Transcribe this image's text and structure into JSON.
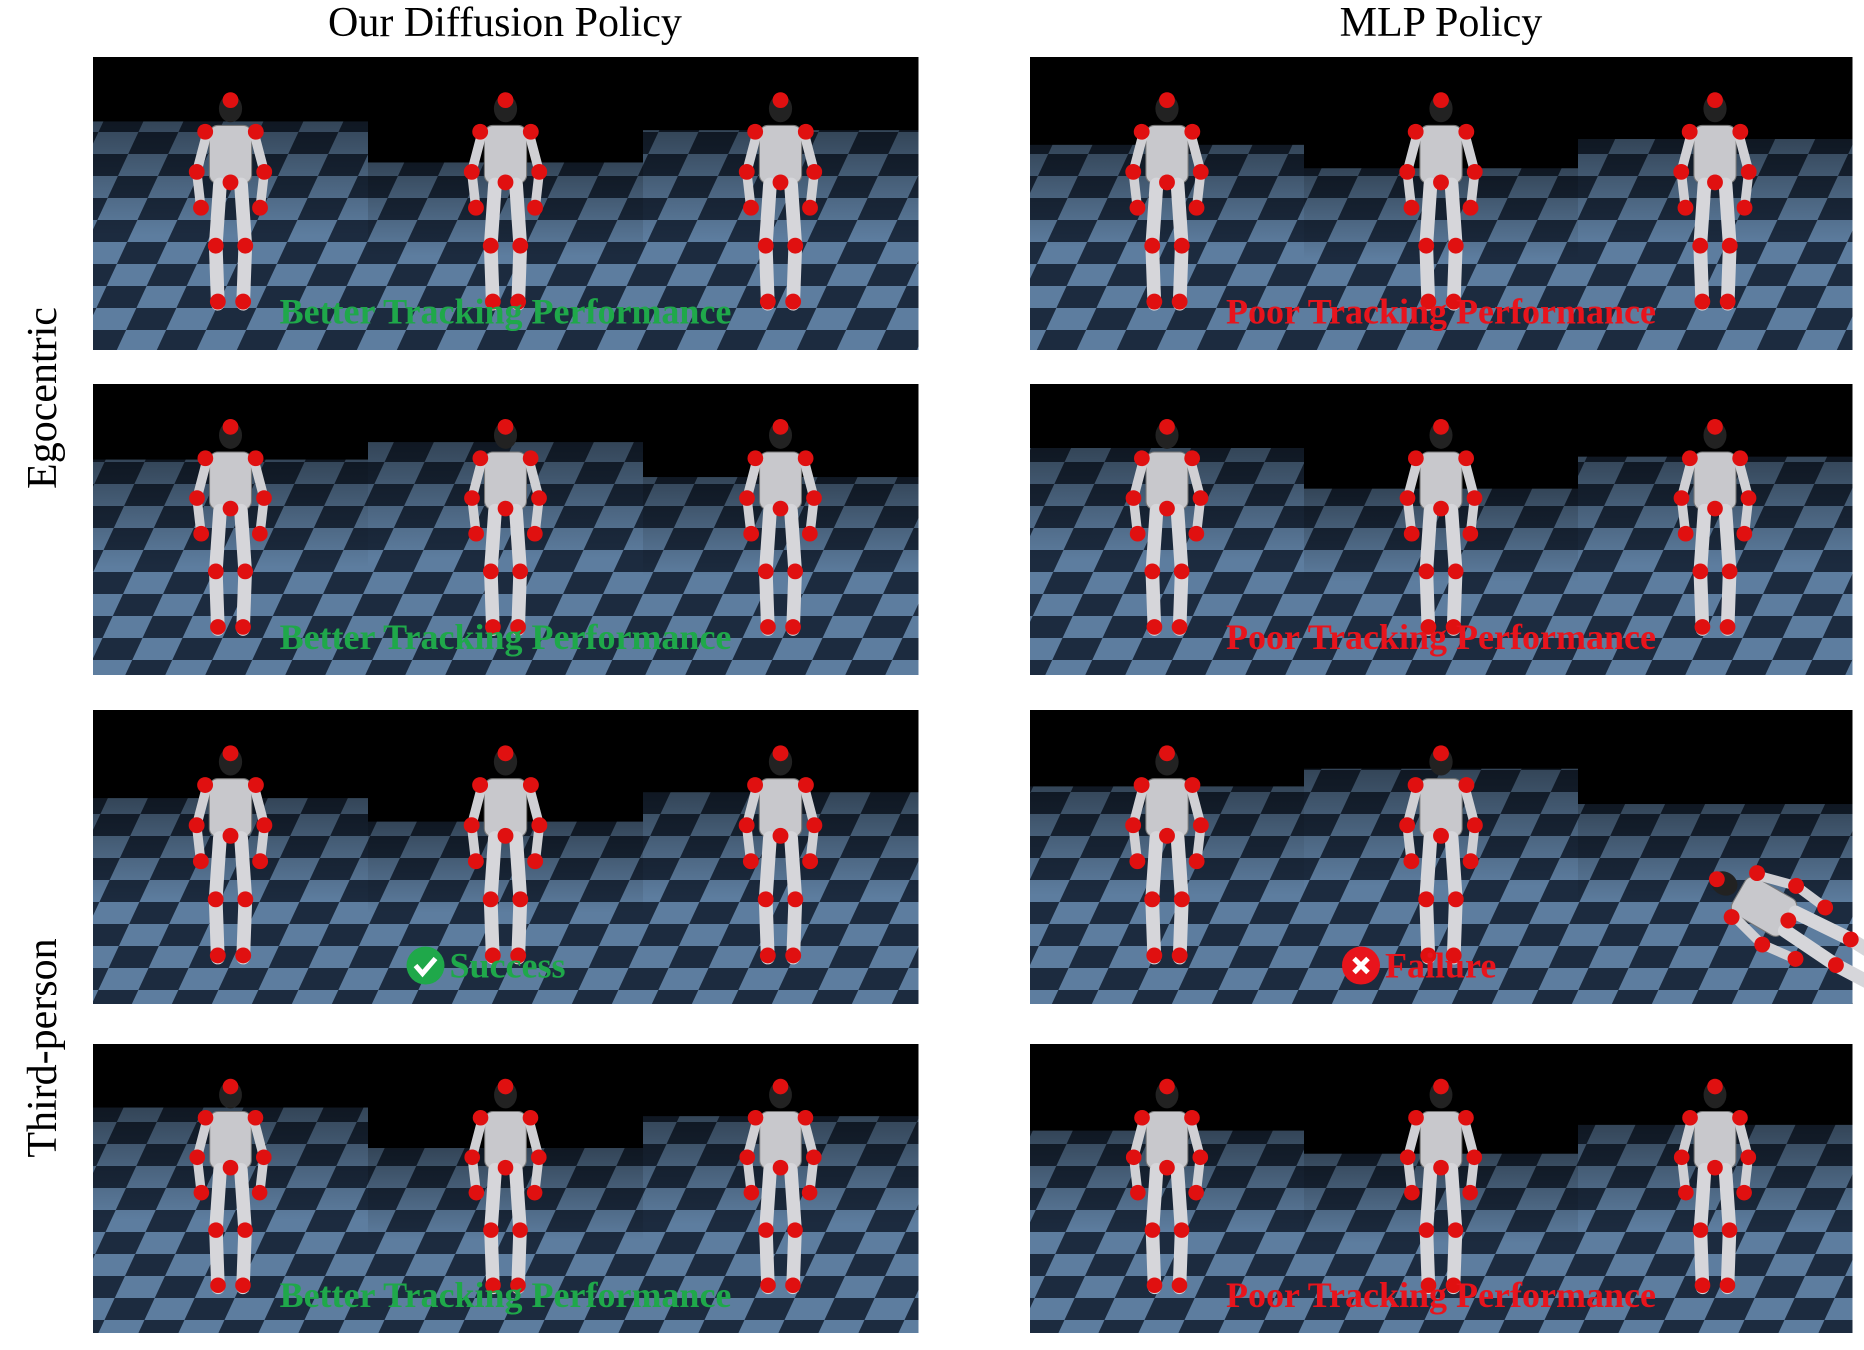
{
  "columns": [
    "Our Diffusion Policy",
    "MLP Policy"
  ],
  "row_groups": [
    "Egocentric",
    "Third-person"
  ],
  "panels": [
    [
      "Better Tracking Performance",
      "Poor Tracking Performance"
    ],
    [
      "Better Tracking Performance",
      "Poor Tracking Performance"
    ],
    [
      "Success",
      "Failure"
    ],
    [
      "Better Tracking Performance",
      "Poor Tracking Performance"
    ]
  ]
}
